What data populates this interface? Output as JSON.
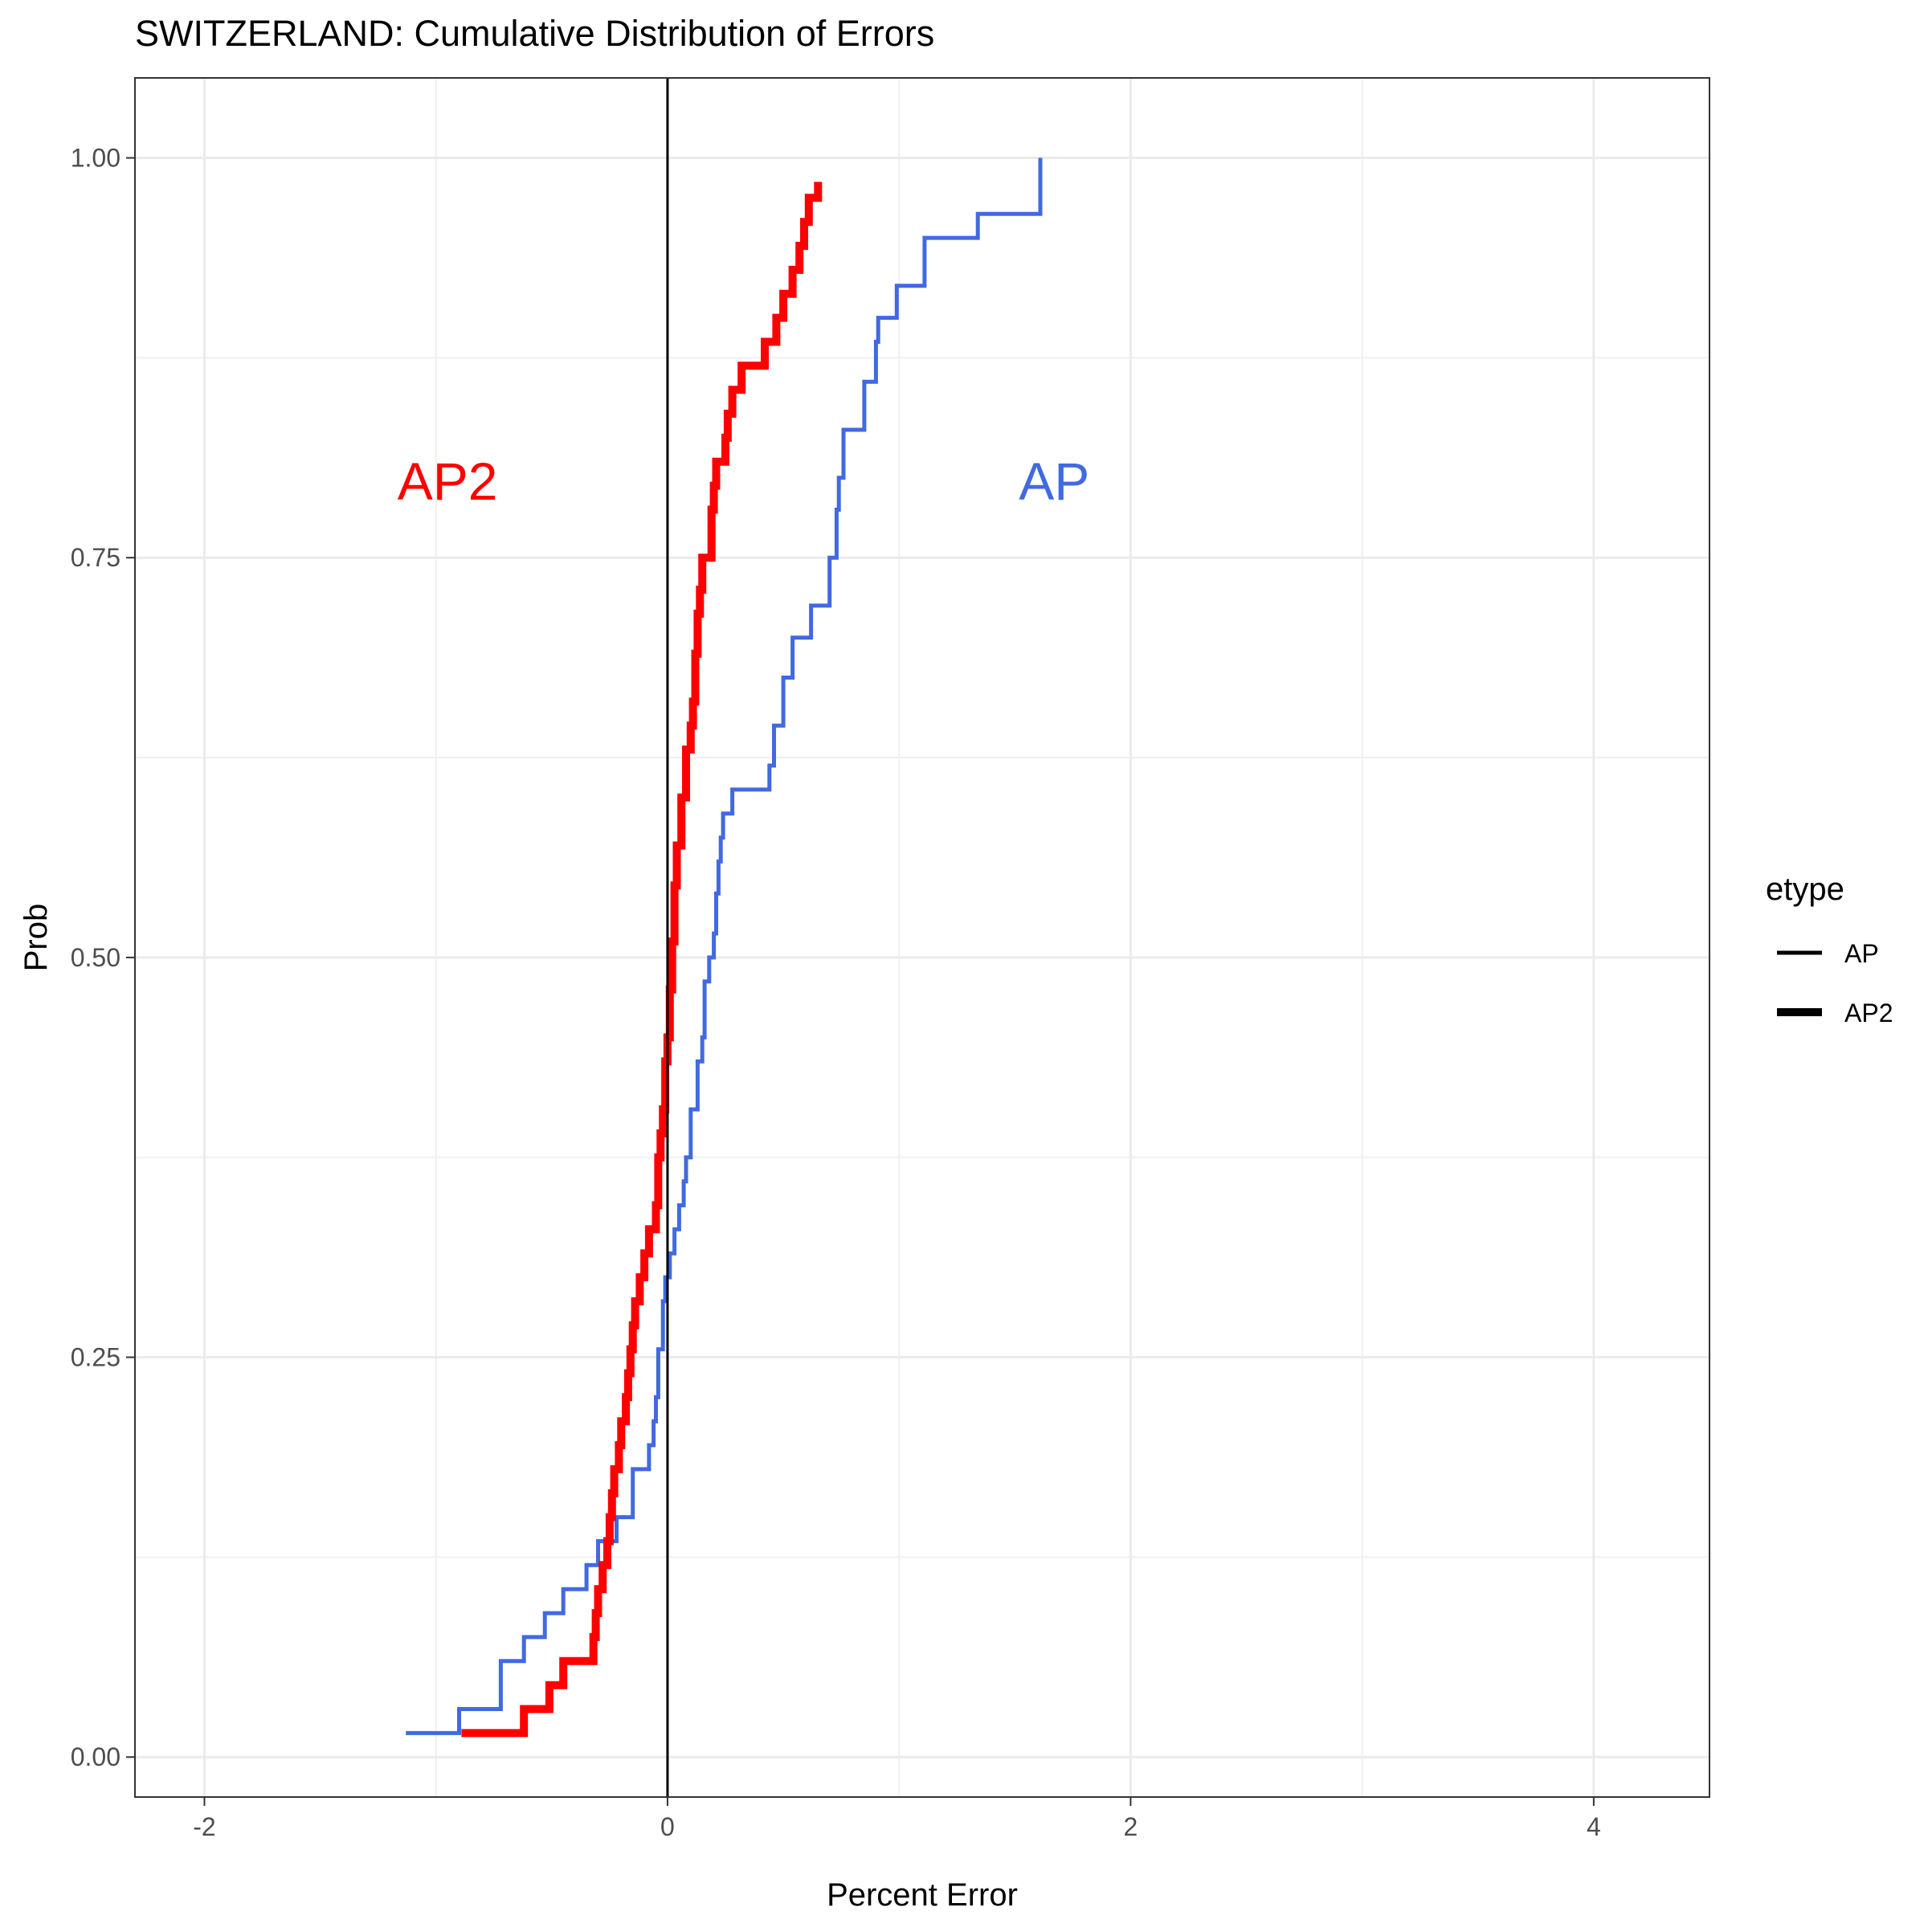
{
  "chart_data": {
    "type": "line",
    "subtype": "step (empirical cumulative distribution)",
    "title": "SWITZERLAND: Cumulative Distribution of Errors",
    "xlabel": "Percent Error",
    "ylabel": "Prob",
    "xlim": [
      -2.3,
      4.5
    ],
    "ylim": [
      -0.025,
      1.05
    ],
    "x_ticks": [
      -2,
      0,
      2,
      4
    ],
    "x_tick_labels": [
      "-2",
      "0",
      "2",
      "4"
    ],
    "y_ticks": [
      0,
      0.25,
      0.5,
      0.75,
      1.0
    ],
    "y_tick_labels": [
      "0.00",
      "0.25",
      "0.50",
      "0.75",
      "1.00"
    ],
    "grid": true,
    "legend": {
      "title": "etype",
      "position": "right",
      "entries": [
        {
          "label": "AP",
          "linewidth": "thin"
        },
        {
          "label": "AP2",
          "linewidth": "thick"
        }
      ]
    },
    "vline": {
      "x": 0,
      "color": "#000000"
    },
    "annotations": [
      {
        "text": "AP2",
        "x": -0.95,
        "y": 0.795,
        "color": "#ff0000"
      },
      {
        "text": "AP",
        "x": 1.67,
        "y": 0.795,
        "color": "#4169e1"
      }
    ],
    "series": [
      {
        "name": "AP",
        "color": "#4169e1",
        "linewidth": "thin",
        "x": [
          -1.13,
          -0.9,
          -0.72,
          -0.62,
          -0.53,
          -0.45,
          -0.35,
          -0.3,
          -0.22,
          -0.15,
          -0.08,
          -0.06,
          -0.05,
          -0.04,
          -0.02,
          -0.01,
          0.01,
          0.03,
          0.05,
          0.07,
          0.08,
          0.1,
          0.13,
          0.15,
          0.16,
          0.18,
          0.2,
          0.21,
          0.22,
          0.23,
          0.24,
          0.28,
          0.44,
          0.46,
          0.5,
          0.54,
          0.62,
          0.7,
          0.73,
          0.74,
          0.76,
          0.85,
          0.9,
          0.91,
          0.99,
          1.11,
          1.34,
          1.61
        ],
        "y": [
          0.015,
          0.03,
          0.06,
          0.075,
          0.09,
          0.105,
          0.12,
          0.135,
          0.15,
          0.18,
          0.195,
          0.21,
          0.225,
          0.255,
          0.285,
          0.3,
          0.315,
          0.33,
          0.345,
          0.36,
          0.375,
          0.405,
          0.435,
          0.45,
          0.485,
          0.5,
          0.515,
          0.54,
          0.56,
          0.575,
          0.59,
          0.605,
          0.62,
          0.645,
          0.675,
          0.7,
          0.72,
          0.75,
          0.78,
          0.8,
          0.83,
          0.86,
          0.885,
          0.9,
          0.92,
          0.95,
          0.965,
          1.0
        ]
      },
      {
        "name": "AP2",
        "color": "#ff0000",
        "linewidth": "thick",
        "x": [
          -0.89,
          -0.62,
          -0.51,
          -0.45,
          -0.32,
          -0.31,
          -0.3,
          -0.28,
          -0.26,
          -0.25,
          -0.24,
          -0.23,
          -0.21,
          -0.2,
          -0.18,
          -0.17,
          -0.16,
          -0.15,
          -0.14,
          -0.12,
          -0.1,
          -0.08,
          -0.05,
          -0.04,
          -0.03,
          -0.02,
          -0.01,
          0.0,
          0.01,
          0.02,
          0.03,
          0.04,
          0.06,
          0.08,
          0.1,
          0.11,
          0.12,
          0.13,
          0.14,
          0.15,
          0.19,
          0.2,
          0.21,
          0.25,
          0.26,
          0.28,
          0.32,
          0.42,
          0.47,
          0.5,
          0.54,
          0.57,
          0.59,
          0.61,
          0.65
        ],
        "y": [
          0.015,
          0.03,
          0.045,
          0.06,
          0.075,
          0.09,
          0.105,
          0.12,
          0.135,
          0.15,
          0.165,
          0.18,
          0.195,
          0.21,
          0.225,
          0.24,
          0.255,
          0.27,
          0.285,
          0.3,
          0.315,
          0.33,
          0.345,
          0.375,
          0.39,
          0.405,
          0.435,
          0.45,
          0.48,
          0.51,
          0.545,
          0.57,
          0.6,
          0.63,
          0.645,
          0.66,
          0.69,
          0.715,
          0.73,
          0.75,
          0.78,
          0.795,
          0.81,
          0.825,
          0.84,
          0.855,
          0.87,
          0.885,
          0.9,
          0.915,
          0.93,
          0.945,
          0.96,
          0.975,
          0.985
        ]
      }
    ]
  }
}
